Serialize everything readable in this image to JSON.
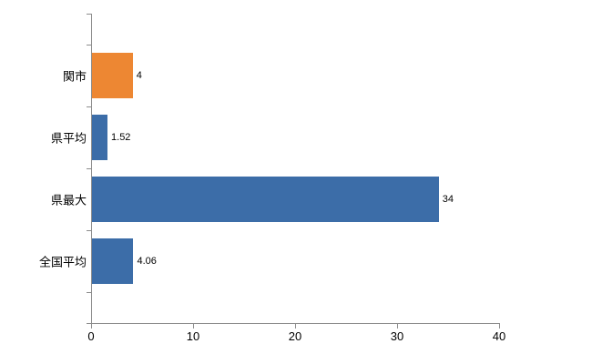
{
  "chart_data": {
    "type": "bar",
    "orientation": "horizontal",
    "title": "",
    "xlabel": "",
    "ylabel": "",
    "categories": [
      "関市",
      "県平均",
      "県最大",
      "全国平均"
    ],
    "values": [
      4,
      1.52,
      34,
      4.06
    ],
    "value_labels": [
      "4",
      "1.52",
      "34",
      "4.06"
    ],
    "bar_colors": [
      "#ed8733",
      "#3c6da8",
      "#3c6da8",
      "#3c6da8"
    ],
    "xlim": [
      0,
      40
    ],
    "x_ticks": [
      0,
      10,
      20,
      30,
      40
    ],
    "x_tick_labels": [
      "0",
      "10",
      "20",
      "30",
      "40"
    ],
    "grid": false,
    "legend": "none"
  },
  "colors": {
    "axis": "#8c8c8c",
    "text": "#000000",
    "background": "#ffffff"
  }
}
